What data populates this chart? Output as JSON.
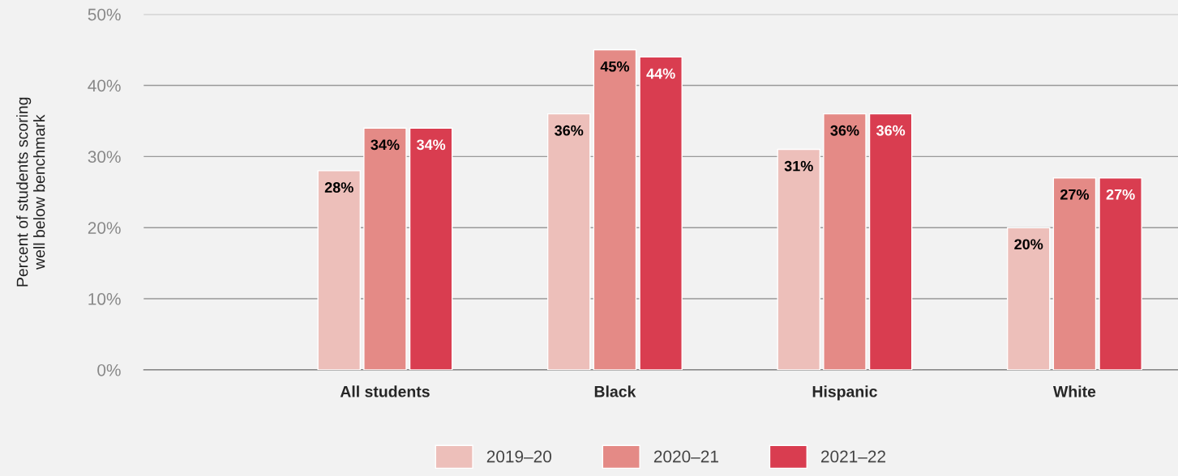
{
  "chart_data": {
    "type": "bar",
    "ylabel": "Percent of students scoring\nwell below benchmark",
    "categories": [
      "All students",
      "Black",
      "Hispanic",
      "White"
    ],
    "series": [
      {
        "name": "2019–20",
        "color": "#edbfba",
        "values": [
          28,
          36,
          31,
          20
        ],
        "value_labels": [
          "28%",
          "36%",
          "31%",
          "20%"
        ]
      },
      {
        "name": "2020–21",
        "color": "#e48a86",
        "values": [
          34,
          45,
          36,
          27
        ],
        "value_labels": [
          "34%",
          "45%",
          "36%",
          "27%"
        ]
      },
      {
        "name": "2021–22",
        "color": "#d93d50",
        "values": [
          34,
          44,
          36,
          27
        ],
        "value_labels": [
          "34%",
          "44%",
          "36%",
          "27%"
        ]
      }
    ],
    "ylim": [
      0,
      50
    ],
    "yticks": [
      {
        "value": 0,
        "label": "0%"
      },
      {
        "value": 10,
        "label": "10%"
      },
      {
        "value": 20,
        "label": "20%"
      },
      {
        "value": 30,
        "label": "30%"
      },
      {
        "value": 40,
        "label": "40%"
      },
      {
        "value": 50,
        "label": "50%"
      }
    ],
    "grid": "y",
    "legend": "bottom"
  }
}
